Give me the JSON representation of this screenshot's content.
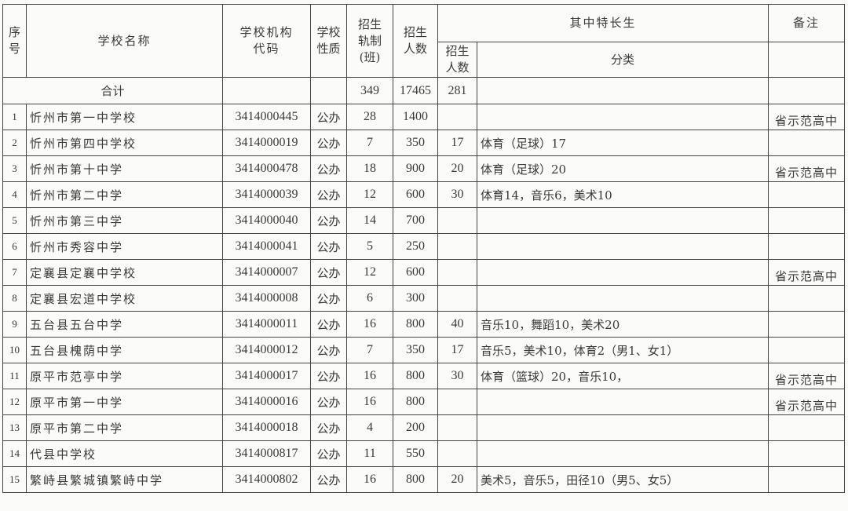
{
  "headers": {
    "seq": "序号",
    "name": "学校名称",
    "code": "学校机构代码",
    "nature": "学校性质",
    "classes": "招生轨制(班)",
    "enroll": "招生人数",
    "special_group": "其中特长生",
    "special_count": "招生人数",
    "special_category": "分类",
    "remark": "备注"
  },
  "total": {
    "label": "合计",
    "classes": "349",
    "enroll": "17465",
    "special_count": "281"
  },
  "rows": [
    {
      "seq": "1",
      "name": "忻州市第一中学校",
      "code": "3414000445",
      "nature": "公办",
      "classes": "28",
      "enroll": "1400",
      "special_count": "",
      "category": "",
      "remark": "省示范高中"
    },
    {
      "seq": "2",
      "name": "忻州市第四中学校",
      "code": "3414000019",
      "nature": "公办",
      "classes": "7",
      "enroll": "350",
      "special_count": "17",
      "category": "体育（足球）17",
      "remark": ""
    },
    {
      "seq": "3",
      "name": "忻州市第十中学",
      "code": "3414000478",
      "nature": "公办",
      "classes": "18",
      "enroll": "900",
      "special_count": "20",
      "category": "体育（足球）20",
      "remark": "省示范高中"
    },
    {
      "seq": "4",
      "name": "忻州市第二中学",
      "code": "3414000039",
      "nature": "公办",
      "classes": "12",
      "enroll": "600",
      "special_count": "30",
      "category": "体育14，音乐6，美术10",
      "remark": ""
    },
    {
      "seq": "5",
      "name": "忻州市第三中学",
      "code": "3414000040",
      "nature": "公办",
      "classes": "14",
      "enroll": "700",
      "special_count": "",
      "category": "",
      "remark": ""
    },
    {
      "seq": "6",
      "name": "忻州市秀容中学",
      "code": "3414000041",
      "nature": "公办",
      "classes": "5",
      "enroll": "250",
      "special_count": "",
      "category": "",
      "remark": ""
    },
    {
      "seq": "7",
      "name": "定襄县定襄中学校",
      "code": "3414000007",
      "nature": "公办",
      "classes": "12",
      "enroll": "600",
      "special_count": "",
      "category": "",
      "remark": "省示范高中"
    },
    {
      "seq": "8",
      "name": "定襄县宏道中学校",
      "code": "3414000008",
      "nature": "公办",
      "classes": "6",
      "enroll": "300",
      "special_count": "",
      "category": "",
      "remark": ""
    },
    {
      "seq": "9",
      "name": "五台县五台中学",
      "code": "3414000011",
      "nature": "公办",
      "classes": "16",
      "enroll": "800",
      "special_count": "40",
      "category": "音乐10，舞蹈10，美术20",
      "remark": ""
    },
    {
      "seq": "10",
      "name": "五台县槐荫中学",
      "code": "3414000012",
      "nature": "公办",
      "classes": "7",
      "enroll": "350",
      "special_count": "17",
      "category": "音乐5，美术10，体育2（男1、女1）",
      "remark": ""
    },
    {
      "seq": "11",
      "name": "原平市范亭中学",
      "code": "3414000017",
      "nature": "公办",
      "classes": "16",
      "enroll": "800",
      "special_count": "30",
      "category": "体育（篮球）20，音乐10，",
      "remark": "省示范高中"
    },
    {
      "seq": "12",
      "name": "原平市第一中学",
      "code": "3414000016",
      "nature": "公办",
      "classes": "16",
      "enroll": "800",
      "special_count": "",
      "category": "",
      "remark": "省示范高中"
    },
    {
      "seq": "13",
      "name": "原平市第二中学",
      "code": "3414000018",
      "nature": "公办",
      "classes": "4",
      "enroll": "200",
      "special_count": "",
      "category": "",
      "remark": ""
    },
    {
      "seq": "14",
      "name": "代县中学校",
      "code": "3414000817",
      "nature": "公办",
      "classes": "11",
      "enroll": "550",
      "special_count": "",
      "category": "",
      "remark": ""
    },
    {
      "seq": "15",
      "name": "繁峙县繁城镇繁峙中学",
      "code": "3414000802",
      "nature": "公办",
      "classes": "16",
      "enroll": "800",
      "special_count": "20",
      "category": "美术5，音乐5，田径10（男5、女5）",
      "remark": ""
    }
  ]
}
